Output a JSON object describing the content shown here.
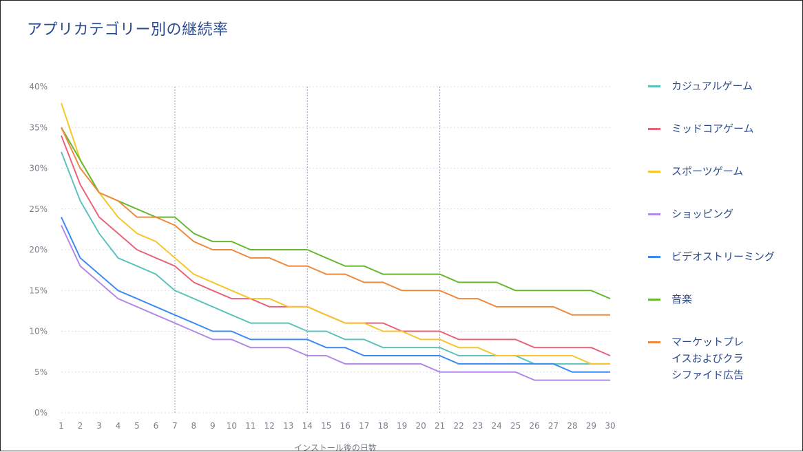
{
  "title": "アプリカテゴリー別の継続率",
  "chart_data": {
    "type": "line",
    "title": "アプリカテゴリー別の継続率",
    "xlabel": "インストール後の日数",
    "ylabel": "",
    "x": [
      1,
      2,
      3,
      4,
      5,
      6,
      7,
      8,
      9,
      10,
      11,
      12,
      13,
      14,
      15,
      16,
      17,
      18,
      19,
      20,
      21,
      22,
      23,
      24,
      25,
      26,
      27,
      28,
      29,
      30
    ],
    "xlim": [
      1,
      30
    ],
    "ylim": [
      0,
      40
    ],
    "y_ticks": [
      "0%",
      "5%",
      "10%",
      "15%",
      "20%",
      "25%",
      "30%",
      "35%",
      "40%"
    ],
    "x_ticks": [
      "1",
      "2",
      "3",
      "4",
      "5",
      "6",
      "7",
      "8",
      "9",
      "10",
      "11",
      "12",
      "13",
      "14",
      "15",
      "16",
      "17",
      "18",
      "19",
      "20",
      "21",
      "22",
      "23",
      "24",
      "25",
      "26",
      "27",
      "28",
      "29",
      "30"
    ],
    "vertical_gridlines_at": [
      7,
      14,
      21
    ],
    "grid": true,
    "legend_position": "right",
    "series": [
      {
        "name": "カジュアルゲーム",
        "color": "#5cc2bc",
        "values": [
          32,
          26,
          22,
          19,
          18,
          17,
          15,
          14,
          13,
          12,
          11,
          11,
          11,
          10,
          10,
          9,
          9,
          8,
          8,
          8,
          8,
          7,
          7,
          7,
          7,
          6,
          6,
          6,
          6,
          6
        ]
      },
      {
        "name": "ミッドコアゲーム",
        "color": "#e8637a",
        "values": [
          34,
          28,
          24,
          22,
          20,
          19,
          18,
          16,
          15,
          14,
          14,
          13,
          13,
          13,
          12,
          11,
          11,
          11,
          10,
          10,
          10,
          9,
          9,
          9,
          9,
          8,
          8,
          8,
          8,
          7
        ]
      },
      {
        "name": "スポーツゲーム",
        "color": "#f7c52b",
        "values": [
          38,
          31,
          27,
          24,
          22,
          21,
          19,
          17,
          16,
          15,
          14,
          14,
          13,
          13,
          12,
          11,
          11,
          10,
          10,
          9,
          9,
          8,
          8,
          7,
          7,
          7,
          7,
          7,
          6,
          6
        ]
      },
      {
        "name": "ショッピング",
        "color": "#b28ae6",
        "values": [
          23,
          18,
          16,
          14,
          13,
          12,
          11,
          10,
          9,
          9,
          8,
          8,
          8,
          7,
          7,
          6,
          6,
          6,
          6,
          6,
          5,
          5,
          5,
          5,
          5,
          4,
          4,
          4,
          4,
          4
        ]
      },
      {
        "name": "ビデオストリーミング",
        "color": "#3b8cf0",
        "values": [
          24,
          19,
          17,
          15,
          14,
          13,
          12,
          11,
          10,
          10,
          9,
          9,
          9,
          9,
          8,
          8,
          7,
          7,
          7,
          7,
          7,
          6,
          6,
          6,
          6,
          6,
          6,
          5,
          5,
          5
        ]
      },
      {
        "name": "音楽",
        "color": "#68b832",
        "values": [
          35,
          31,
          27,
          26,
          25,
          24,
          24,
          22,
          21,
          21,
          20,
          20,
          20,
          20,
          19,
          18,
          18,
          17,
          17,
          17,
          17,
          16,
          16,
          16,
          15,
          15,
          15,
          15,
          15,
          14
        ]
      },
      {
        "name": "マーケットプレ\nイスおよびクラ\nシファイド広告",
        "color": "#ef8a3d",
        "values": [
          35,
          30,
          27,
          26,
          24,
          24,
          23,
          21,
          20,
          20,
          19,
          19,
          18,
          18,
          17,
          17,
          16,
          16,
          15,
          15,
          15,
          14,
          14,
          13,
          13,
          13,
          13,
          12,
          12,
          12
        ]
      }
    ]
  }
}
